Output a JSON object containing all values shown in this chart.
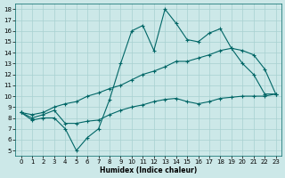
{
  "xlabel": "Humidex (Indice chaleur)",
  "xlim": [
    -0.5,
    23.5
  ],
  "ylim": [
    4.5,
    18.5
  ],
  "xticks": [
    0,
    1,
    2,
    3,
    4,
    5,
    6,
    7,
    8,
    9,
    10,
    11,
    12,
    13,
    14,
    15,
    16,
    17,
    18,
    19,
    20,
    21,
    22,
    23
  ],
  "yticks": [
    5,
    6,
    7,
    8,
    9,
    10,
    11,
    12,
    13,
    14,
    15,
    16,
    17,
    18
  ],
  "background_color": "#cce8e8",
  "grid_color": "#a8d0d0",
  "line_color": "#006666",
  "line1_x": [
    0,
    1,
    2,
    3,
    4,
    5,
    6,
    7,
    8,
    9,
    10,
    11,
    12,
    13,
    14,
    15,
    16,
    17,
    18,
    19,
    20,
    21,
    22,
    23
  ],
  "line1_y": [
    8.5,
    7.8,
    8.0,
    8.0,
    7.0,
    5.0,
    6.2,
    7.0,
    9.7,
    13.0,
    16.0,
    16.5,
    14.2,
    18.0,
    16.7,
    15.2,
    15.0,
    15.8,
    16.2,
    14.4,
    13.0,
    12.0,
    10.2,
    10.2
  ],
  "line2_x": [
    0,
    1,
    2,
    3,
    4,
    5,
    6,
    7,
    8,
    9,
    10,
    11,
    12,
    13,
    14,
    15,
    16,
    17,
    18,
    19,
    20,
    21,
    22,
    23
  ],
  "line2_y": [
    8.5,
    8.3,
    8.5,
    9.0,
    9.3,
    9.5,
    10.0,
    10.3,
    10.7,
    11.0,
    11.5,
    12.0,
    12.3,
    12.7,
    13.2,
    13.2,
    13.5,
    13.8,
    14.2,
    14.4,
    14.2,
    13.8,
    12.5,
    10.2
  ],
  "line3_x": [
    0,
    1,
    2,
    3,
    4,
    5,
    6,
    7,
    8,
    9,
    10,
    11,
    12,
    13,
    14,
    15,
    16,
    17,
    18,
    19,
    20,
    21,
    22,
    23
  ],
  "line3_y": [
    8.5,
    8.0,
    8.3,
    8.7,
    7.5,
    7.5,
    7.7,
    7.8,
    8.3,
    8.7,
    9.0,
    9.2,
    9.5,
    9.7,
    9.8,
    9.5,
    9.3,
    9.5,
    9.8,
    9.9,
    10.0,
    10.0,
    10.0,
    10.2
  ]
}
